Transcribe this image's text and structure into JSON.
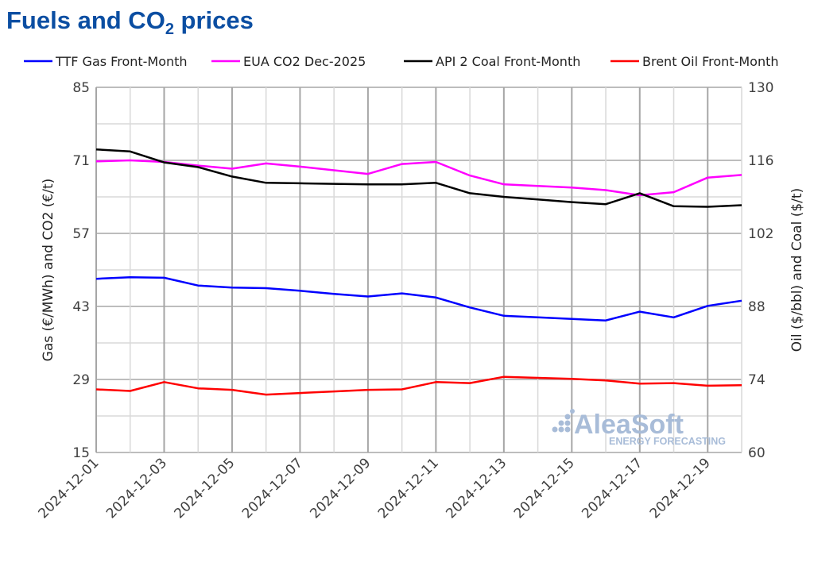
{
  "title": {
    "main": "Fuels and CO",
    "sub": "2",
    "tail": " prices"
  },
  "chart_data": {
    "type": "line",
    "title": "Fuels and CO2 prices",
    "x": [
      "2024-12-01",
      "2024-12-02",
      "2024-12-03",
      "2024-12-04",
      "2024-12-05",
      "2024-12-06",
      "2024-12-07",
      "2024-12-08",
      "2024-12-09",
      "2024-12-10",
      "2024-12-11",
      "2024-12-12",
      "2024-12-13",
      "2024-12-14",
      "2024-12-15",
      "2024-12-16",
      "2024-12-17",
      "2024-12-18",
      "2024-12-19",
      "2024-12-20"
    ],
    "x_tick_labels": [
      "2024-12-01",
      "2024-12-03",
      "2024-12-05",
      "2024-12-07",
      "2024-12-09",
      "2024-12-11",
      "2024-12-13",
      "2024-12-15",
      "2024-12-17",
      "2024-12-19"
    ],
    "ylabel": "Gas (€/MWh) and CO2 (€/t)",
    "ylabel_right": "Oil ($/bbl) and Coal ($/t)",
    "ylim": [
      15,
      85
    ],
    "ylim_right": [
      60,
      130
    ],
    "y_ticks": [
      "85",
      "71",
      "57",
      "43",
      "29",
      "15"
    ],
    "y_ticks_right": [
      "130",
      "116",
      "102",
      "88",
      "74",
      "60"
    ],
    "grid": true,
    "legend_position": "top",
    "series": [
      {
        "name": "TTF Gas Front-Month",
        "axis": "left",
        "color": "#0000ff",
        "values": [
          48.3,
          48.6,
          48.5,
          47.0,
          46.6,
          46.5,
          46.0,
          45.4,
          44.9,
          45.5,
          44.7,
          42.8,
          41.2,
          40.9,
          40.6,
          40.3,
          42.0,
          40.9,
          43.1,
          44.1
        ]
      },
      {
        "name": "EUA CO2 Dec-2025",
        "axis": "left",
        "color": "#ff00ff",
        "values": [
          70.8,
          71.0,
          70.7,
          70.0,
          69.4,
          70.4,
          69.8,
          69.1,
          68.4,
          70.3,
          70.7,
          68.1,
          66.4,
          66.1,
          65.8,
          65.3,
          64.3,
          64.9,
          67.7,
          68.2
        ]
      },
      {
        "name": "API 2 Coal Front-Month",
        "axis": "right",
        "color": "#000000",
        "values": [
          118.1,
          117.7,
          115.6,
          114.7,
          112.9,
          111.7,
          111.6,
          111.5,
          111.4,
          111.4,
          111.7,
          109.7,
          109.0,
          108.5,
          108.0,
          107.6,
          109.7,
          107.2,
          107.1,
          107.4
        ]
      },
      {
        "name": "Brent Oil Front-Month",
        "axis": "right",
        "color": "#ff0000",
        "values": [
          72.1,
          71.8,
          73.5,
          72.3,
          72.0,
          71.1,
          71.4,
          71.7,
          72.0,
          72.1,
          73.5,
          73.3,
          74.5,
          74.3,
          74.1,
          73.8,
          73.2,
          73.3,
          72.8,
          72.9
        ]
      }
    ]
  },
  "logo": {
    "name": "AleaSoft",
    "tagline": "ENERGY FORECASTING",
    "color": "#a8bcd8"
  }
}
